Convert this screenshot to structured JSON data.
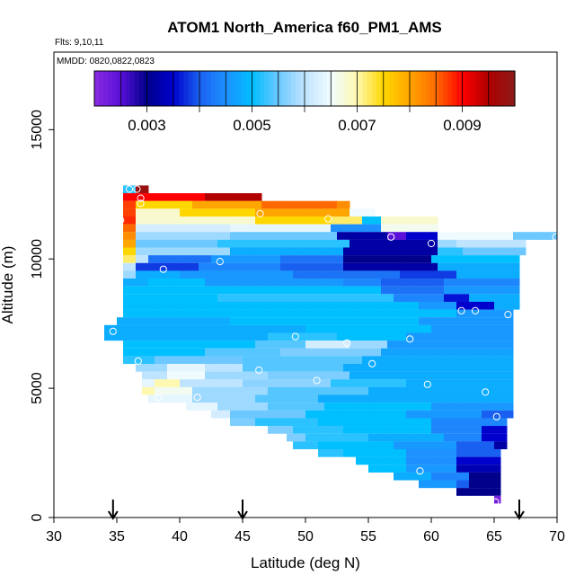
{
  "chart_data": {
    "type": "heatmap",
    "title": "ATOM1 North_America f60_PM1_AMS",
    "flights_label": "Flts: 9,10,11",
    "dates_label": "MMDD: 0820,0822,0823",
    "xlabel": "Latitude (deg N)",
    "ylabel": "Altitude (m)",
    "xlim": [
      30,
      70
    ],
    "ylim": [
      0,
      18000
    ],
    "xticks": [
      30,
      35,
      40,
      45,
      50,
      55,
      60,
      65,
      70
    ],
    "yticks": [
      0,
      5000,
      10000,
      15000
    ],
    "colorbar": {
      "range": [
        0.002,
        0.01
      ],
      "tick_values": [
        0.003,
        0.005,
        0.007,
        0.009
      ],
      "tick_labels": [
        "0.003",
        "0.005",
        "0.007",
        "0.009"
      ],
      "colors": [
        "#8a2be2",
        "#5a10d8",
        "#00008b",
        "#0000cd",
        "#1a60f0",
        "#1e90ff",
        "#00bfff",
        "#6cc8ff",
        "#bfe4ff",
        "#f0fbff",
        "#fff8b0",
        "#ffd700",
        "#ffa500",
        "#ff6a00",
        "#ff0000",
        "#b00000",
        "#8b1a1a"
      ]
    },
    "arrows_latitude": [
      34.7,
      45,
      67
    ],
    "grid_spec": {
      "cell_lat": 1,
      "cell_alt": 285
    },
    "value_rows": [
      {
        "alt": 12700,
        "cells": [
          [
            35.5,
            36.5,
            0.0052
          ],
          [
            36.5,
            37.5,
            0.0098
          ]
        ]
      },
      {
        "alt": 12400,
        "cells": [
          [
            35.5,
            36.5,
            0.009
          ],
          [
            36.5,
            42.0,
            0.009
          ],
          [
            42.0,
            46.5,
            0.0095
          ]
        ]
      },
      {
        "alt": 12100,
        "cells": [
          [
            35.5,
            36.5,
            0.0087
          ],
          [
            36.5,
            41.0,
            0.0075
          ],
          [
            41.0,
            46.5,
            0.008
          ],
          [
            46.5,
            52.5,
            0.0085
          ],
          [
            52.5,
            53.5,
            0.0082
          ]
        ]
      },
      {
        "alt": 11800,
        "cells": [
          [
            35.5,
            36.5,
            0.0087
          ],
          [
            36.5,
            40.0,
            0.0068
          ],
          [
            40.0,
            46.0,
            0.0075
          ],
          [
            46.0,
            53.5,
            0.008
          ],
          [
            53.5,
            55.5,
            0.0065
          ]
        ]
      },
      {
        "alt": 11500,
        "cells": [
          [
            35.5,
            36.5,
            0.0088
          ],
          [
            36.5,
            46.0,
            0.0068
          ],
          [
            46.0,
            52.0,
            0.0075
          ],
          [
            52.0,
            54.5,
            0.0072
          ],
          [
            54.5,
            56.0,
            0.005
          ],
          [
            56.0,
            60.5,
            0.0068
          ]
        ]
      },
      {
        "alt": 11200,
        "cells": [
          [
            35.5,
            36.5,
            0.0085
          ],
          [
            36.5,
            44.0,
            0.0062
          ],
          [
            44.0,
            52.0,
            0.0064
          ],
          [
            52.0,
            56.0,
            0.0045
          ],
          [
            56.0,
            60.5,
            0.0066
          ]
        ]
      },
      {
        "alt": 10900,
        "cells": [
          [
            35.5,
            36.5,
            0.0082
          ],
          [
            36.5,
            44.0,
            0.0058
          ],
          [
            44.0,
            52.5,
            0.0055
          ],
          [
            52.5,
            56.5,
            0.0032
          ],
          [
            56.5,
            58.0,
            0.0025
          ],
          [
            58.0,
            60.5,
            0.0035
          ],
          [
            60.5,
            66.5,
            0.0065
          ],
          [
            66.5,
            70.0,
            0.0055
          ]
        ]
      },
      {
        "alt": 10600,
        "cells": [
          [
            35.5,
            36.5,
            0.008
          ],
          [
            36.5,
            43.0,
            0.0055
          ],
          [
            43.0,
            53.5,
            0.0052
          ],
          [
            53.5,
            60.5,
            0.0032
          ],
          [
            60.5,
            62.0,
            0.0058
          ],
          [
            62.0,
            67.5,
            0.006
          ]
        ]
      },
      {
        "alt": 10300,
        "cells": [
          [
            35.5,
            36.5,
            0.0075
          ],
          [
            36.5,
            44.0,
            0.0058
          ],
          [
            44.0,
            53.0,
            0.0048
          ],
          [
            53.0,
            60.5,
            0.0032
          ],
          [
            60.5,
            62.5,
            0.0052
          ],
          [
            62.5,
            67.5,
            0.0055
          ]
        ]
      },
      {
        "alt": 10000,
        "cells": [
          [
            35.5,
            36.5,
            0.0072
          ],
          [
            36.5,
            37.5,
            0.006
          ],
          [
            37.5,
            42.5,
            0.0042
          ],
          [
            42.5,
            48.0,
            0.0046
          ],
          [
            48.0,
            53.0,
            0.0042
          ],
          [
            53.0,
            60.0,
            0.003
          ],
          [
            60.0,
            67.0,
            0.005
          ]
        ]
      },
      {
        "alt": 9700,
        "cells": [
          [
            35.5,
            36.5,
            0.006
          ],
          [
            36.5,
            41.5,
            0.0038
          ],
          [
            41.5,
            48.0,
            0.0044
          ],
          [
            48.0,
            53.0,
            0.004
          ],
          [
            53.0,
            60.5,
            0.0032
          ],
          [
            60.5,
            67.0,
            0.0048
          ]
        ]
      },
      {
        "alt": 9400,
        "cells": [
          [
            35.5,
            36.5,
            0.0058
          ],
          [
            36.5,
            40.0,
            0.0048
          ],
          [
            40.0,
            49.0,
            0.0046
          ],
          [
            49.0,
            57.5,
            0.0042
          ],
          [
            57.5,
            62.0,
            0.0038
          ],
          [
            62.0,
            67.0,
            0.0048
          ]
        ]
      },
      {
        "alt": 9100,
        "cells": [
          [
            35.5,
            37.5,
            0.0048
          ],
          [
            37.5,
            42.0,
            0.005
          ],
          [
            42.0,
            53.0,
            0.0046
          ],
          [
            53.0,
            56.0,
            0.0044
          ],
          [
            56.0,
            61.0,
            0.004
          ],
          [
            61.0,
            67.0,
            0.0044
          ]
        ]
      },
      {
        "alt": 8800,
        "cells": [
          [
            35.5,
            44.0,
            0.005
          ],
          [
            44.0,
            56.0,
            0.005
          ],
          [
            56.0,
            61.0,
            0.0042
          ],
          [
            61.0,
            67.0,
            0.0046
          ]
        ]
      },
      {
        "alt": 8500,
        "cells": [
          [
            35.5,
            43.0,
            0.005
          ],
          [
            43.0,
            57.0,
            0.0052
          ],
          [
            57.0,
            61.0,
            0.0044
          ],
          [
            61.0,
            63.0,
            0.0036
          ],
          [
            63.0,
            67.0,
            0.0048
          ]
        ]
      },
      {
        "alt": 8200,
        "cells": [
          [
            35.5,
            59.0,
            0.005
          ],
          [
            59.0,
            62.0,
            0.0046
          ],
          [
            62.0,
            65.0,
            0.0035
          ],
          [
            65.0,
            67.0,
            0.0048
          ]
        ]
      },
      {
        "alt": 7900,
        "cells": [
          [
            35.5,
            58.0,
            0.005
          ],
          [
            58.0,
            62.0,
            0.005
          ],
          [
            62.0,
            66.5,
            0.0046
          ]
        ]
      },
      {
        "alt": 7600,
        "cells": [
          [
            35.0,
            44.0,
            0.0048
          ],
          [
            44.0,
            59.0,
            0.005
          ],
          [
            59.0,
            66.5,
            0.0046
          ]
        ]
      },
      {
        "alt": 7300,
        "cells": [
          [
            34.0,
            50.0,
            0.0048
          ],
          [
            50.0,
            60.0,
            0.005
          ],
          [
            60.0,
            66.5,
            0.0046
          ]
        ]
      },
      {
        "alt": 7000,
        "cells": [
          [
            34.0,
            47.0,
            0.0048
          ],
          [
            47.0,
            52.5,
            0.0052
          ],
          [
            52.5,
            58.0,
            0.005
          ],
          [
            58.0,
            66.5,
            0.0046
          ]
        ]
      },
      {
        "alt": 6700,
        "cells": [
          [
            35.5,
            46.0,
            0.005
          ],
          [
            46.0,
            50.0,
            0.0054
          ],
          [
            50.0,
            53.5,
            0.0062
          ],
          [
            53.5,
            56.5,
            0.0058
          ],
          [
            56.5,
            66.5,
            0.0046
          ]
        ]
      },
      {
        "alt": 6400,
        "cells": [
          [
            35.5,
            42.0,
            0.005
          ],
          [
            42.0,
            48.0,
            0.0054
          ],
          [
            48.0,
            56.0,
            0.0056
          ],
          [
            56.0,
            66.5,
            0.0047
          ]
        ]
      },
      {
        "alt": 6100,
        "cells": [
          [
            35.5,
            38.0,
            0.0052
          ],
          [
            38.0,
            45.0,
            0.0055
          ],
          [
            45.0,
            54.5,
            0.0054
          ],
          [
            54.5,
            66.5,
            0.0048
          ]
        ]
      },
      {
        "alt": 5800,
        "cells": [
          [
            36.5,
            39.0,
            0.0058
          ],
          [
            39.0,
            42.0,
            0.0064
          ],
          [
            42.0,
            45.0,
            0.006
          ],
          [
            45.0,
            53.0,
            0.0054
          ],
          [
            53.0,
            66.5,
            0.0048
          ]
        ]
      },
      {
        "alt": 5500,
        "cells": [
          [
            37.0,
            39.0,
            0.006
          ],
          [
            39.0,
            42.0,
            0.0065
          ],
          [
            42.0,
            47.0,
            0.0058
          ],
          [
            47.0,
            53.5,
            0.0056
          ],
          [
            53.5,
            66.5,
            0.0048
          ]
        ]
      },
      {
        "alt": 5200,
        "cells": [
          [
            37.0,
            38.0,
            0.0064
          ],
          [
            38.0,
            40.0,
            0.007
          ],
          [
            40.0,
            45.0,
            0.006
          ],
          [
            45.0,
            52.0,
            0.0057
          ],
          [
            52.0,
            58.0,
            0.0052
          ],
          [
            58.0,
            66.5,
            0.0048
          ]
        ]
      },
      {
        "alt": 4900,
        "cells": [
          [
            37.0,
            38.0,
            0.007
          ],
          [
            38.0,
            41.0,
            0.0066
          ],
          [
            41.0,
            47.0,
            0.0058
          ],
          [
            47.0,
            55.0,
            0.0054
          ],
          [
            55.0,
            66.5,
            0.0048
          ]
        ]
      },
      {
        "alt": 4600,
        "cells": [
          [
            37.5,
            41.0,
            0.0064
          ],
          [
            41.0,
            46.0,
            0.0058
          ],
          [
            46.0,
            51.0,
            0.0054
          ],
          [
            51.0,
            66.5,
            0.0048
          ]
        ]
      },
      {
        "alt": 4300,
        "cells": [
          [
            40.5,
            43.0,
            0.0064
          ],
          [
            43.0,
            47.0,
            0.0058
          ],
          [
            47.0,
            51.5,
            0.0054
          ],
          [
            51.5,
            60.0,
            0.005
          ],
          [
            60.0,
            66.5,
            0.0046
          ]
        ]
      },
      {
        "alt": 4000,
        "cells": [
          [
            42.5,
            44.0,
            0.0062
          ],
          [
            44.0,
            50.0,
            0.0055
          ],
          [
            50.0,
            58.0,
            0.005
          ],
          [
            58.0,
            64.0,
            0.0046
          ],
          [
            64.0,
            66.5,
            0.004
          ]
        ]
      },
      {
        "alt": 3700,
        "cells": [
          [
            44.0,
            46.0,
            0.0056
          ],
          [
            46.0,
            51.0,
            0.0052
          ],
          [
            51.0,
            60.0,
            0.005
          ],
          [
            60.0,
            66.0,
            0.0044
          ]
        ]
      },
      {
        "alt": 3400,
        "cells": [
          [
            47.0,
            49.0,
            0.0056
          ],
          [
            49.0,
            53.0,
            0.0052
          ],
          [
            53.0,
            60.0,
            0.005
          ],
          [
            60.0,
            64.0,
            0.0044
          ],
          [
            64.0,
            66.0,
            0.0035
          ]
        ]
      },
      {
        "alt": 3100,
        "cells": [
          [
            48.5,
            50.0,
            0.0056
          ],
          [
            50.0,
            55.0,
            0.0052
          ],
          [
            55.0,
            61.0,
            0.0048
          ],
          [
            61.0,
            64.0,
            0.0044
          ],
          [
            64.0,
            66.0,
            0.0035
          ]
        ]
      },
      {
        "alt": 2800,
        "cells": [
          [
            49.0,
            51.0,
            0.0052
          ],
          [
            51.0,
            57.0,
            0.005
          ],
          [
            57.0,
            62.0,
            0.0046
          ],
          [
            62.0,
            65.0,
            0.004
          ],
          [
            65.0,
            66.0,
            0.0032
          ]
        ]
      },
      {
        "alt": 2500,
        "cells": [
          [
            51.0,
            53.0,
            0.0052
          ],
          [
            53.0,
            58.0,
            0.005
          ],
          [
            58.0,
            62.0,
            0.0045
          ],
          [
            62.0,
            65.5,
            0.004
          ]
        ]
      },
      {
        "alt": 2200,
        "cells": [
          [
            54.0,
            58.0,
            0.005
          ],
          [
            58.0,
            62.0,
            0.0045
          ],
          [
            62.0,
            65.5,
            0.0035
          ]
        ]
      },
      {
        "alt": 1900,
        "cells": [
          [
            55.0,
            58.0,
            0.005
          ],
          [
            58.0,
            62.0,
            0.0046
          ],
          [
            62.0,
            65.5,
            0.0033
          ]
        ]
      },
      {
        "alt": 1600,
        "cells": [
          [
            57.0,
            60.0,
            0.0048
          ],
          [
            60.0,
            63.0,
            0.0044
          ],
          [
            63.0,
            65.5,
            0.003
          ]
        ]
      },
      {
        "alt": 1300,
        "cells": [
          [
            59.0,
            62.0,
            0.0046
          ],
          [
            62.0,
            63.0,
            0.004
          ],
          [
            63.0,
            65.5,
            0.003
          ]
        ]
      },
      {
        "alt": 1000,
        "cells": [
          [
            62.0,
            65.5,
            0.003
          ]
        ]
      },
      {
        "alt": 700,
        "cells": [
          [
            65.0,
            65.5,
            0.0022
          ]
        ]
      }
    ],
    "points": [
      [
        36.0,
        12700
      ],
      [
        36.6,
        12700
      ],
      [
        36.9,
        12350
      ],
      [
        36.9,
        12150
      ],
      [
        35.3,
        11500
      ],
      [
        46.4,
        11750
      ],
      [
        51.8,
        11550
      ],
      [
        56.8,
        10850
      ],
      [
        60.0,
        10600
      ],
      [
        69.9,
        10850
      ],
      [
        43.2,
        9900
      ],
      [
        38.7,
        9600
      ],
      [
        62.4,
        8000
      ],
      [
        63.5,
        8000
      ],
      [
        66.1,
        7850
      ],
      [
        34.7,
        7200
      ],
      [
        49.2,
        7000
      ],
      [
        53.3,
        6750
      ],
      [
        58.3,
        6900
      ],
      [
        36.7,
        6050
      ],
      [
        55.3,
        5950
      ],
      [
        46.3,
        5700
      ],
      [
        50.9,
        5300
      ],
      [
        59.7,
        5150
      ],
      [
        64.3,
        4850
      ],
      [
        38.3,
        4650
      ],
      [
        41.4,
        4650
      ],
      [
        65.2,
        3900
      ],
      [
        59.1,
        1800
      ],
      [
        65.1,
        600
      ]
    ]
  }
}
